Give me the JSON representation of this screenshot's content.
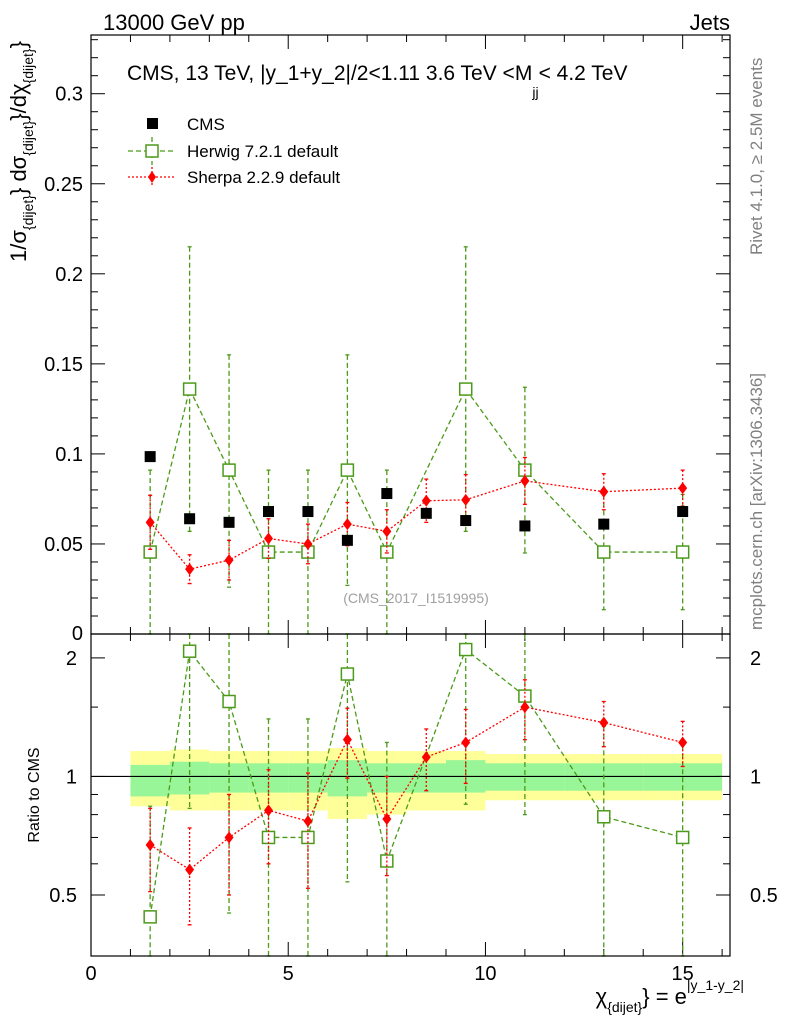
{
  "header": {
    "left": "13000 GeV pp",
    "right": "Jets"
  },
  "side_labels": {
    "rivet": "Rivet 4.1.0, ≥ 2.5M events",
    "mcplots": "mcplots.cern.ch [arXiv:1306.3436]"
  },
  "chart_data": {
    "type": "scatter",
    "title": "CMS, 13 TeV, |y_1+y_2|/2<1.11 3.6 TeV <M_jj< 4.2 TeV",
    "title_parts": {
      "main": "CMS, 13 TeV, |y_1+y_2|/2<1.11 3.6 TeV <M",
      "sub": "jj",
      "tail": "< 4.2 TeV"
    },
    "watermark": "(CMS_2017_I1519995)",
    "xlabel_parts": {
      "chi": "χ",
      "chi_sub": "{dijet}",
      "eq": "} = e",
      "exp": "|y_1-y_2|"
    },
    "ylabel_parts": {
      "a": "1/σ",
      "a_sub": "{dijet}",
      "b": "} dσ",
      "b_sub": "{dijet}",
      "c": "}/dχ",
      "c_sub": "{dijet}",
      "d": "}"
    },
    "ratio_ylabel": "Ratio to CMS",
    "xlim": [
      0,
      16.2
    ],
    "ylim": [
      0,
      0.3326
    ],
    "ratio_ylim": [
      0.35,
      2.3
    ],
    "x_ticks": [
      0,
      5,
      10,
      15
    ],
    "x_tick_labels": [
      "0",
      "5",
      "10",
      "15"
    ],
    "y_ticks": [
      0.05,
      0.1,
      0.15,
      0.2,
      0.25,
      0.3
    ],
    "y_tick_labels": [
      "0.05",
      "0.1",
      "0.15",
      "0.2",
      "0.25",
      "0.3"
    ],
    "y_zero_label": "0",
    "ratio_y_ticks": [
      0.5,
      1,
      2
    ],
    "ratio_y_tick_labels": [
      "0.5",
      "1",
      "2"
    ],
    "legend": [
      {
        "name": "CMS"
      },
      {
        "name": "Herwig 7.2.1 default"
      },
      {
        "name": "Sherpa 2.2.9 default"
      }
    ],
    "bins": [
      [
        1,
        2
      ],
      [
        2,
        3
      ],
      [
        3,
        4
      ],
      [
        4,
        5
      ],
      [
        5,
        6
      ],
      [
        6,
        7
      ],
      [
        7,
        8
      ],
      [
        8,
        9
      ],
      [
        9,
        10
      ],
      [
        10,
        12
      ],
      [
        12,
        14
      ],
      [
        14,
        16
      ]
    ],
    "series": [
      {
        "name": "CMS",
        "color": "#000000",
        "x": [
          1.5,
          2.5,
          3.5,
          4.5,
          5.5,
          6.5,
          7.5,
          8.5,
          9.5,
          11,
          13,
          15
        ],
        "y": [
          0.0985,
          0.064,
          0.062,
          0.068,
          0.068,
          0.052,
          0.078,
          0.067,
          0.063,
          0.06,
          0.061,
          0.068
        ]
      },
      {
        "name": "Herwig 7.2.1 default",
        "color": "#4c9a1a",
        "x": [
          1.5,
          2.5,
          3.5,
          4.5,
          5.5,
          6.5,
          7.5,
          9.5,
          11,
          13,
          15
        ],
        "y": [
          0.0455,
          0.136,
          0.091,
          0.0455,
          0.0455,
          0.091,
          0.0455,
          0.136,
          0.091,
          0.0455,
          0.0455
        ],
        "err_low": [
          0.0455,
          0.079,
          0.065,
          0.0455,
          0.0455,
          0.064,
          0.0455,
          0.079,
          0.046,
          0.032,
          0.032
        ],
        "err_high": [
          0.0455,
          0.079,
          0.064,
          0.0455,
          0.0455,
          0.064,
          0.0455,
          0.079,
          0.046,
          0.032,
          0.032
        ],
        "ratio": [
          0.44,
          2.08,
          1.55,
          0.7,
          0.7,
          1.82,
          0.61,
          2.1,
          1.6,
          0.79,
          0.7
        ],
        "ratio_err_low": [
          0.4,
          1.25,
          1.1,
          0.7,
          0.7,
          1.28,
          0.61,
          1.25,
          0.8,
          0.55,
          0.5
        ],
        "ratio_err_high": [
          0.4,
          1.25,
          1.1,
          0.7,
          0.7,
          1.28,
          0.61,
          1.25,
          0.8,
          0.55,
          0.5
        ]
      },
      {
        "name": "Sherpa 2.2.9 default",
        "color": "#ff0000",
        "x": [
          1.5,
          2.5,
          3.5,
          4.5,
          5.5,
          6.5,
          7.5,
          8.5,
          9.5,
          11,
          13,
          15
        ],
        "y": [
          0.062,
          0.036,
          0.041,
          0.053,
          0.05,
          0.061,
          0.057,
          0.074,
          0.0745,
          0.085,
          0.079,
          0.081
        ],
        "err_low": [
          0.015,
          0.008,
          0.011,
          0.011,
          0.011,
          0.012,
          0.012,
          0.012,
          0.014,
          0.013,
          0.01,
          0.01
        ],
        "err_high": [
          0.015,
          0.008,
          0.011,
          0.011,
          0.011,
          0.012,
          0.012,
          0.012,
          0.014,
          0.013,
          0.01,
          0.01
        ],
        "ratio": [
          0.67,
          0.58,
          0.7,
          0.82,
          0.77,
          1.24,
          0.78,
          1.12,
          1.22,
          1.5,
          1.37,
          1.22
        ],
        "ratio_err_low": [
          0.16,
          0.16,
          0.2,
          0.22,
          0.25,
          0.25,
          0.22,
          0.2,
          0.26,
          0.26,
          0.18,
          0.16
        ],
        "ratio_err_high": [
          0.16,
          0.16,
          0.2,
          0.22,
          0.25,
          0.25,
          0.22,
          0.2,
          0.26,
          0.26,
          0.18,
          0.16
        ]
      }
    ],
    "ratio_bands": {
      "inner_color": "#98f598",
      "outer_color": "#ffff99",
      "inner_low": [
        0.89,
        0.9,
        0.91,
        0.91,
        0.91,
        0.89,
        0.91,
        0.91,
        0.91,
        0.92,
        0.92,
        0.92
      ],
      "inner_high": [
        1.07,
        1.09,
        1.08,
        1.08,
        1.08,
        1.1,
        1.08,
        1.08,
        1.1,
        1.08,
        1.08,
        1.08
      ],
      "outer_low": [
        0.84,
        0.82,
        0.82,
        0.82,
        0.82,
        0.78,
        0.8,
        0.82,
        0.82,
        0.87,
        0.87,
        0.87
      ],
      "outer_high": [
        1.16,
        1.17,
        1.16,
        1.16,
        1.16,
        1.18,
        1.16,
        1.16,
        1.16,
        1.14,
        1.14,
        1.14
      ]
    }
  }
}
